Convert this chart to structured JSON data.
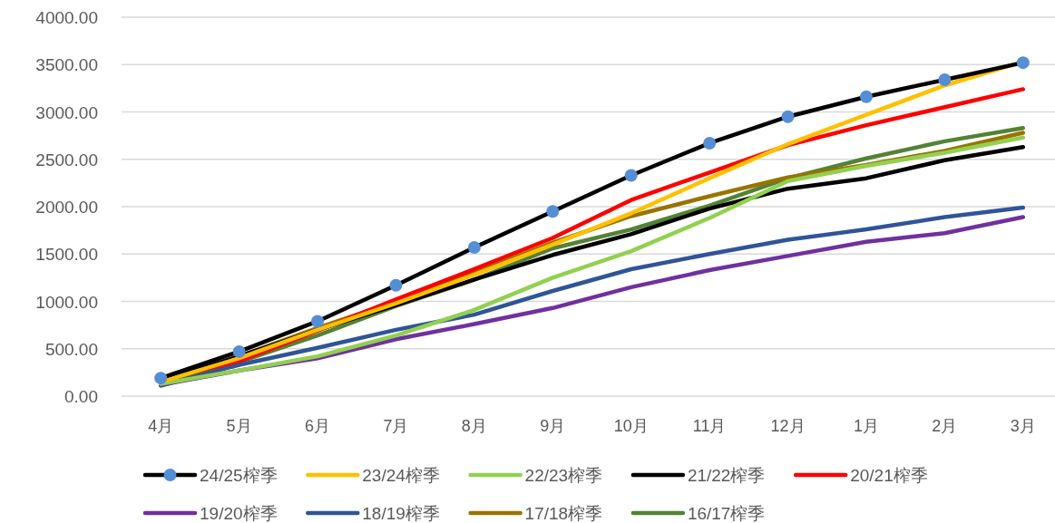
{
  "chart_data": {
    "type": "line",
    "categories": [
      "4月",
      "5月",
      "6月",
      "7月",
      "8月",
      "9月",
      "10月",
      "11月",
      "12月",
      "1月",
      "2月",
      "3月"
    ],
    "ylim": [
      0,
      4000
    ],
    "yticks": [
      {
        "value": 0,
        "label": "0.00"
      },
      {
        "value": 500,
        "label": "500.00"
      },
      {
        "value": 1000,
        "label": "1000.00"
      },
      {
        "value": 1500,
        "label": "1500.00"
      },
      {
        "value": 2000,
        "label": "2000.00"
      },
      {
        "value": 2500,
        "label": "2500.00"
      },
      {
        "value": 3000,
        "label": "3000.00"
      },
      {
        "value": 3500,
        "label": "3500.00"
      },
      {
        "value": 4000,
        "label": "4000.00"
      }
    ],
    "grid": "y",
    "legend": "bottom",
    "line_style": "solid",
    "series": [
      {
        "name": "24/25榨季",
        "color": "#000000",
        "marker": "circle",
        "values": [
          190,
          470,
          790,
          1170,
          1570,
          1950,
          2330,
          2670,
          2950,
          3160,
          3340,
          3520
        ]
      },
      {
        "name": "23/24榨季",
        "color": "#ffc000",
        "values": [
          150,
          400,
          700,
          980,
          1280,
          1600,
          1930,
          2300,
          2660,
          2970,
          3280,
          3530
        ]
      },
      {
        "name": "22/23榨季",
        "color": "#92d050",
        "values": [
          130,
          270,
          420,
          640,
          910,
          1250,
          1530,
          1880,
          2270,
          2430,
          2570,
          2730
        ]
      },
      {
        "name": "21/22榨季",
        "color": "#000000",
        "values": [
          160,
          420,
          700,
          960,
          1230,
          1490,
          1710,
          1980,
          2190,
          2300,
          2490,
          2630
        ]
      },
      {
        "name": "20/21榨季",
        "color": "#ff0000",
        "values": [
          170,
          370,
          690,
          1020,
          1340,
          1670,
          2070,
          2360,
          2650,
          2860,
          3050,
          3240
        ]
      },
      {
        "name": "19/20榨季",
        "color": "#7030a0",
        "values": [
          120,
          270,
          400,
          600,
          760,
          930,
          1150,
          1330,
          1480,
          1630,
          1720,
          1890
        ]
      },
      {
        "name": "18/19榨季",
        "color": "#2f5597",
        "values": [
          110,
          330,
          510,
          700,
          860,
          1110,
          1340,
          1500,
          1650,
          1760,
          1890,
          1990
        ]
      },
      {
        "name": "17/18榨季",
        "color": "#997300",
        "values": [
          170,
          420,
          720,
          1000,
          1300,
          1620,
          1900,
          2110,
          2310,
          2440,
          2590,
          2780
        ]
      },
      {
        "name": "16/17榨季",
        "color": "#548235",
        "values": [
          140,
          360,
          640,
          950,
          1230,
          1560,
          1760,
          2010,
          2300,
          2510,
          2690,
          2830
        ]
      }
    ]
  }
}
